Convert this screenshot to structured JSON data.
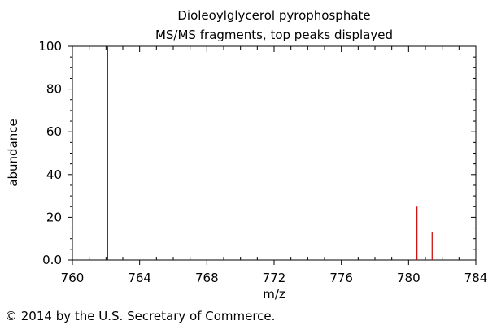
{
  "chart_data": {
    "type": "bar",
    "title": "Dioleoylglycerol pyrophosphate",
    "subtitle": "MS/MS fragments, top peaks displayed",
    "xlabel": "m/z",
    "ylabel": "abundance",
    "xlim": [
      760,
      784
    ],
    "ylim": [
      0,
      100
    ],
    "x_ticks": [
      760,
      764,
      768,
      772,
      776,
      780,
      784
    ],
    "y_ticks": [
      "0.0",
      "20",
      "40",
      "60",
      "80",
      "100"
    ],
    "grid": false,
    "peaks": [
      {
        "x": 762.1,
        "y": 100
      },
      {
        "x": 780.5,
        "y": 25
      },
      {
        "x": 781.4,
        "y": 13
      }
    ],
    "peak_color": "#cc0000"
  },
  "footer": {
    "copyright": "© 2014 by the U.S. Secretary of Commerce."
  }
}
